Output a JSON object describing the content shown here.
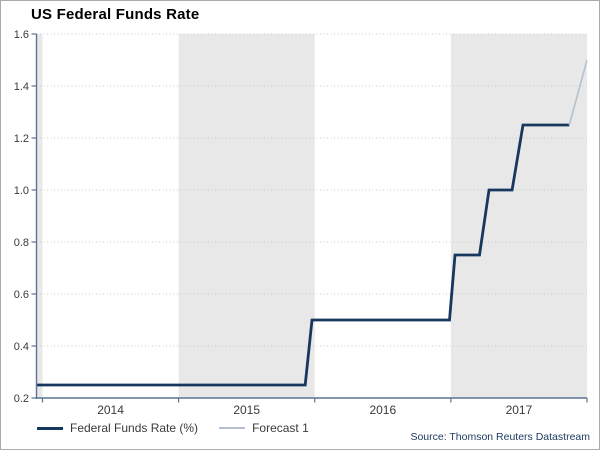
{
  "chart_data": {
    "type": "line",
    "title": "US Federal Funds Rate",
    "source": "Source: Thomson Reuters Datastream",
    "x_range": [
      2013.956,
      2018
    ],
    "ylim": [
      0.2,
      1.6
    ],
    "y_ticks": [
      0.2,
      0.4,
      0.6,
      0.8,
      1.0,
      1.2,
      1.4,
      1.6
    ],
    "x_year_boundaries": [
      2014,
      2015,
      2016,
      2017,
      2018
    ],
    "x_year_labels": [
      "2014",
      "2015",
      "2016",
      "2017"
    ],
    "shaded_bands": [
      [
        2013.956,
        2014
      ],
      [
        2015,
        2016
      ],
      [
        2017,
        2018
      ]
    ],
    "band_color": "#e8e8e8",
    "grid_color": "#c9c9c9",
    "axis_color": "#5b7394",
    "text_color": "#3a3a3a",
    "grid": "horizontal-dotted",
    "legend_position": "bottom-left",
    "series": [
      {
        "name": "Federal Funds Rate (%)",
        "color": "#17375e",
        "width": 2.8,
        "points": [
          [
            2013.956,
            0.25
          ],
          [
            2015.93,
            0.25
          ],
          [
            2015.98,
            0.5
          ],
          [
            2016.99,
            0.5
          ],
          [
            2017.03,
            0.75
          ],
          [
            2017.21,
            0.75
          ],
          [
            2017.28,
            1.0
          ],
          [
            2017.45,
            1.0
          ],
          [
            2017.53,
            1.25
          ],
          [
            2017.87,
            1.25
          ]
        ]
      },
      {
        "name": "Forecast 1",
        "color": "#b4c1cf",
        "width": 1.6,
        "points": [
          [
            2017.87,
            1.25
          ],
          [
            2018,
            1.5
          ]
        ]
      }
    ]
  }
}
